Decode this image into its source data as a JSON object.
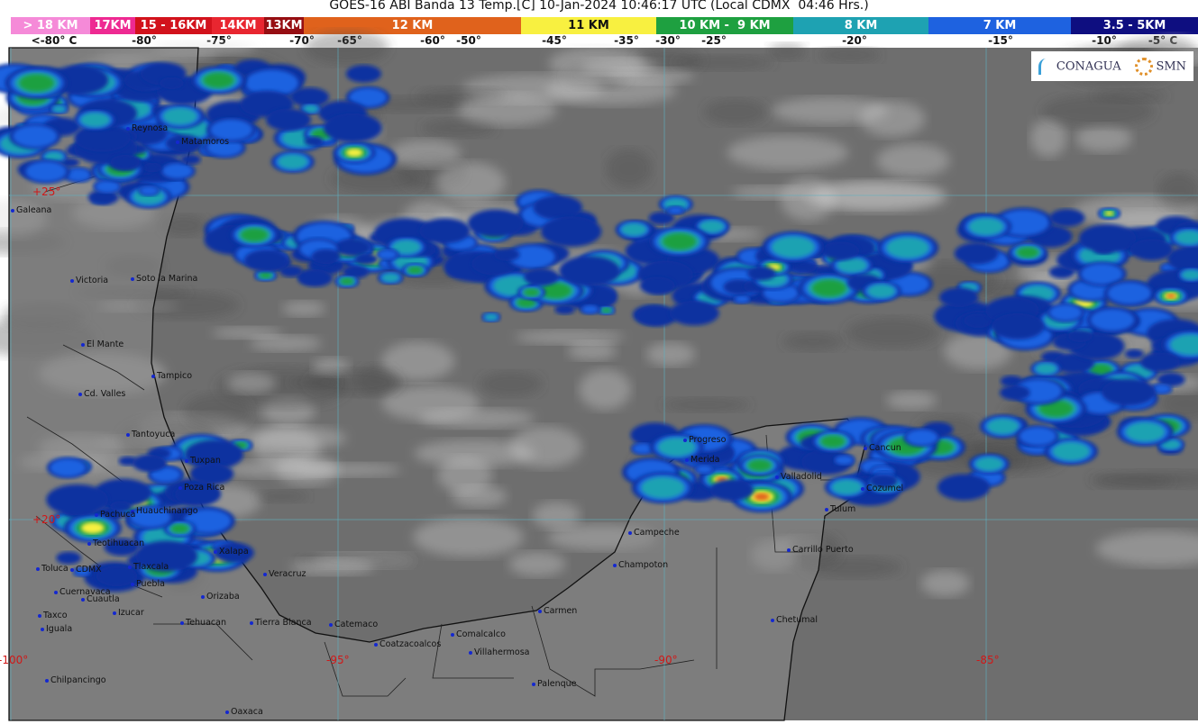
{
  "title": "GOES-16 ABI Banda 13 Temp.[C] 10-Jan-2024 10:46:17 UTC (Local CDMX  04:46 Hrs.)",
  "legend": {
    "heights": [
      {
        "label": "> 18 KM",
        "color": "#f58ad8"
      },
      {
        "label": "17KM",
        "color": "#ee2a92"
      },
      {
        "label": "15 - 16KM",
        "color": "#d2121c"
      },
      {
        "label": "14KM",
        "color": "#e82630"
      },
      {
        "label": "13KM",
        "color": "#960e12"
      },
      {
        "label": "12 KM",
        "color": "#e0621c"
      },
      {
        "label": "11 KM",
        "color": "#f8f040"
      },
      {
        "label": "10 KM -  9 KM",
        "color": "#1ea040"
      },
      {
        "label": "8 KM",
        "color": "#1ea2b2"
      },
      {
        "label": "7 KM",
        "color": "#1e62e0"
      },
      {
        "label": "3.5 - 5KM",
        "color": "#0e0e80"
      }
    ],
    "temperatures": [
      "<-80° C",
      "-80°",
      "-75°",
      "-70°",
      "-65°",
      "-60°",
      "-50°",
      "-45°",
      "-35°",
      "-30°",
      "-25°",
      "-20°",
      "-15°",
      "-10°",
      "-5° C"
    ]
  },
  "logos": {
    "conagua": "CONAGUA",
    "smn": "SMN"
  },
  "grid_labels": {
    "lat_25": "+25°",
    "lat_20": "+20°",
    "lon_100": "-100°",
    "lon_95": "-95°",
    "lon_90": "-90°",
    "lon_85": "-85°"
  },
  "cities": [
    "Reynosa",
    "Matamoros",
    "Galeana",
    "Victoria",
    "Soto la Marina",
    "El Mante",
    "Tampico",
    "Cd. Valles",
    "Tantoyuca",
    "Tuxpan",
    "Poza Rica",
    "Huauchinango",
    "Pachuca",
    "Teotihuacan",
    "Toluca",
    "CDMX",
    "Tlaxcala",
    "Puebla",
    "Xalapa",
    "Veracruz",
    "Cuernavaca",
    "Cuautla",
    "Orizaba",
    "Taxco",
    "Izucar",
    "Iguala",
    "Tehuacan",
    "Tierra Blanca",
    "Catemaco",
    "Coatzacoalcos",
    "Comalcalco",
    "Villahermosa",
    "Carmen",
    "Champoton",
    "Campeche",
    "Progreso",
    "Merida",
    "Valladolid",
    "Cancun",
    "Cozumel",
    "Tulum",
    "Carrillo Puerto",
    "Chetumal",
    "Palenque",
    "Chilpancingo",
    "Oaxaca"
  ]
}
